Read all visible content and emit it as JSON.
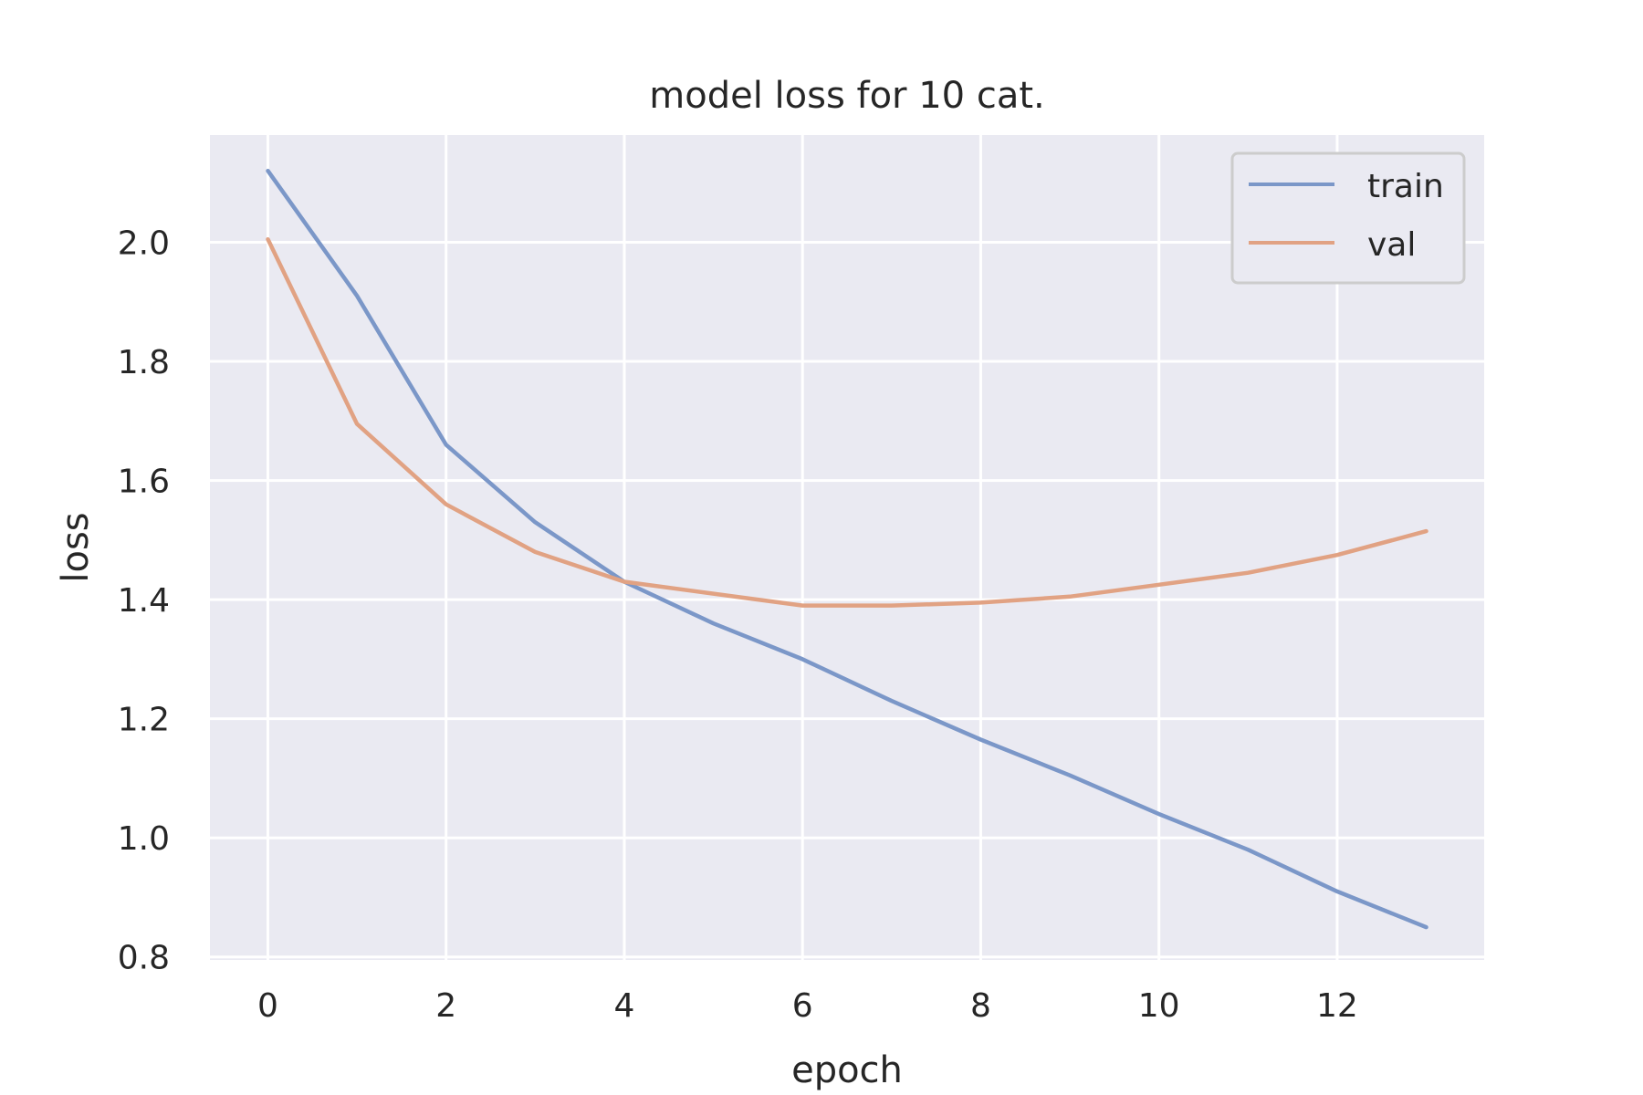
{
  "chart_data": {
    "type": "line",
    "title": "model loss for 10 cat.",
    "xlabel": "epoch",
    "ylabel": "loss",
    "x": [
      0,
      1,
      2,
      3,
      4,
      5,
      6,
      7,
      8,
      9,
      10,
      11,
      12,
      13
    ],
    "xlim": [
      -0.65,
      13.65
    ],
    "ylim": [
      0.795,
      2.18
    ],
    "xticks": [
      0,
      2,
      4,
      6,
      8,
      10,
      12
    ],
    "yticks": [
      0.8,
      1.0,
      1.2,
      1.4,
      1.6,
      1.8,
      2.0
    ],
    "xtick_labels": [
      "0",
      "2",
      "4",
      "6",
      "8",
      "10",
      "12"
    ],
    "ytick_labels": [
      "0.8",
      "1.0",
      "1.2",
      "1.4",
      "1.6",
      "1.8",
      "2.0"
    ],
    "grid": true,
    "legend_position": "top-right",
    "background_color": "#eaeaf2",
    "series": [
      {
        "name": "train",
        "color": "#7b97c8",
        "values": [
          2.12,
          1.91,
          1.66,
          1.53,
          1.43,
          1.36,
          1.3,
          1.23,
          1.165,
          1.105,
          1.04,
          0.98,
          0.91,
          0.85
        ]
      },
      {
        "name": "val",
        "color": "#e1a283",
        "values": [
          2.005,
          1.695,
          1.56,
          1.48,
          1.43,
          1.41,
          1.39,
          1.39,
          1.395,
          1.405,
          1.425,
          1.445,
          1.475,
          1.515
        ]
      }
    ]
  }
}
